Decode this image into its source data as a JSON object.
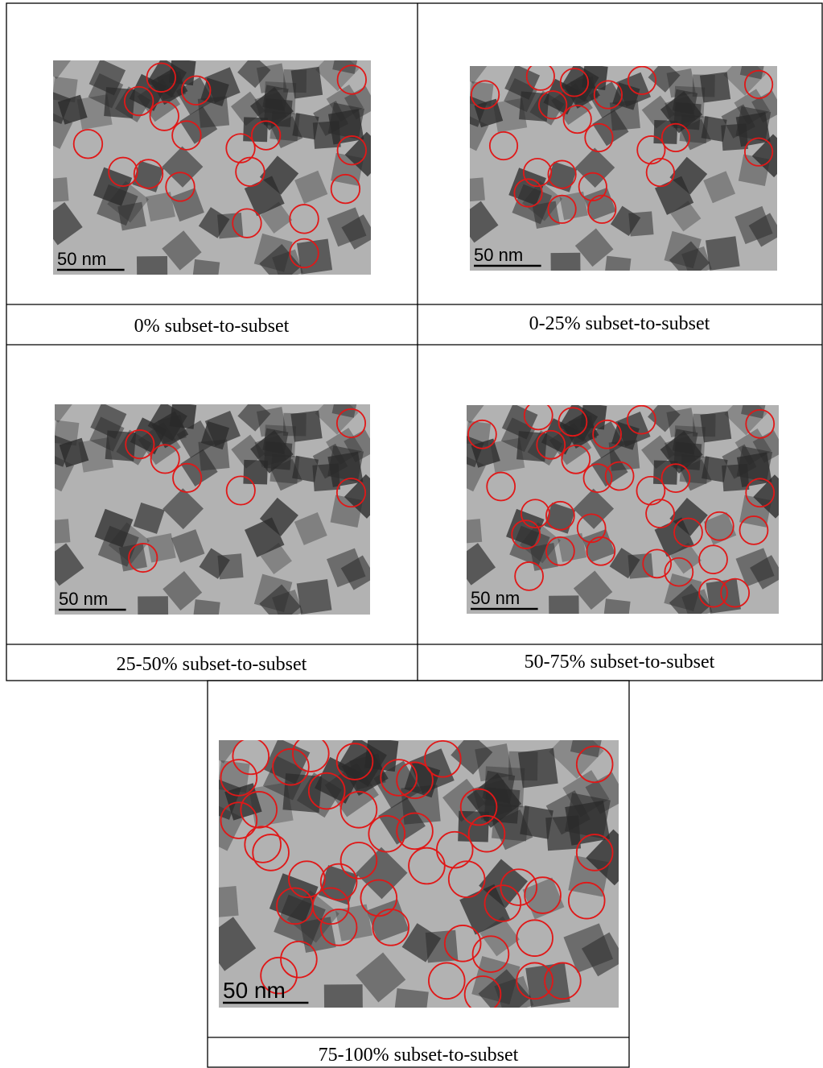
{
  "panels": [
    {
      "caption": "0% subset-to-subset",
      "scale_bar": "50 nm"
    },
    {
      "caption": "0-25% subset-to-subset",
      "scale_bar": "50 nm"
    },
    {
      "caption": "25-50% subset-to-subset",
      "scale_bar": "50 nm"
    },
    {
      "caption": "50-75% subset-to-subset",
      "scale_bar": "50 nm"
    },
    {
      "caption": "75-100% subset-to-subset",
      "scale_bar": "50 nm"
    }
  ]
}
